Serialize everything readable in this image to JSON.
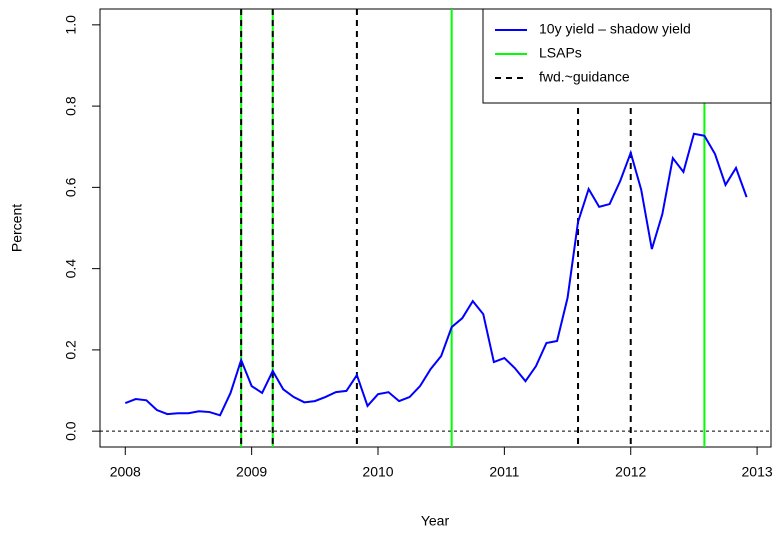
{
  "chart_data": {
    "type": "line",
    "xlabel": "Year",
    "ylabel": "Percent",
    "x": [
      2008.0,
      2008.083,
      2008.167,
      2008.25,
      2008.333,
      2008.417,
      2008.5,
      2008.583,
      2008.667,
      2008.75,
      2008.833,
      2008.917,
      2009.0,
      2009.083,
      2009.167,
      2009.25,
      2009.333,
      2009.417,
      2009.5,
      2009.583,
      2009.667,
      2009.75,
      2009.833,
      2009.917,
      2010.0,
      2010.083,
      2010.167,
      2010.25,
      2010.333,
      2010.417,
      2010.5,
      2010.583,
      2010.667,
      2010.75,
      2010.833,
      2010.917,
      2011.0,
      2011.083,
      2011.167,
      2011.25,
      2011.333,
      2011.417,
      2011.5,
      2011.583,
      2011.667,
      2011.75,
      2011.833,
      2011.917,
      2012.0,
      2012.083,
      2012.167,
      2012.25,
      2012.333,
      2012.417,
      2012.5,
      2012.583,
      2012.667,
      2012.75,
      2012.833,
      2012.917
    ],
    "series": [
      {
        "name": "10y yield – shadow yield",
        "color": "#0000ff",
        "values": [
          0.069,
          0.079,
          0.076,
          0.052,
          0.042,
          0.044,
          0.044,
          0.049,
          0.047,
          0.039,
          0.094,
          0.175,
          0.111,
          0.094,
          0.148,
          0.103,
          0.084,
          0.071,
          0.074,
          0.084,
          0.096,
          0.099,
          0.138,
          0.062,
          0.091,
          0.096,
          0.074,
          0.084,
          0.111,
          0.153,
          0.185,
          0.256,
          0.278,
          0.32,
          0.288,
          0.17,
          0.18,
          0.155,
          0.123,
          0.16,
          0.217,
          0.222,
          0.328,
          0.515,
          0.596,
          0.552,
          0.559,
          0.616,
          0.685,
          0.594,
          0.448,
          0.534,
          0.672,
          0.638,
          0.732,
          0.727,
          0.682,
          0.606,
          0.648,
          0.576
        ]
      }
    ],
    "lsaps": {
      "name": "LSAPs",
      "color": "#00ff00",
      "x": [
        2008.917,
        2009.167,
        2010.583,
        2012.583
      ]
    },
    "guidance": {
      "name": "fwd.~guidance",
      "color": "#000000",
      "x": [
        2008.917,
        2009.167,
        2009.833,
        2011.583,
        2012.0
      ]
    },
    "hline": 0,
    "xlim": [
      2007.8,
      2013.11
    ],
    "ylim": [
      -0.039,
      1.039
    ],
    "xticks": [
      2008,
      2009,
      2010,
      2011,
      2012,
      2013
    ],
    "yticks": [
      {
        "value": 0,
        "label": "0.0"
      },
      0.2,
      0.4,
      0.6,
      0.8,
      {
        "value": 1,
        "label": "1.0"
      }
    ],
    "legend": "topright"
  }
}
